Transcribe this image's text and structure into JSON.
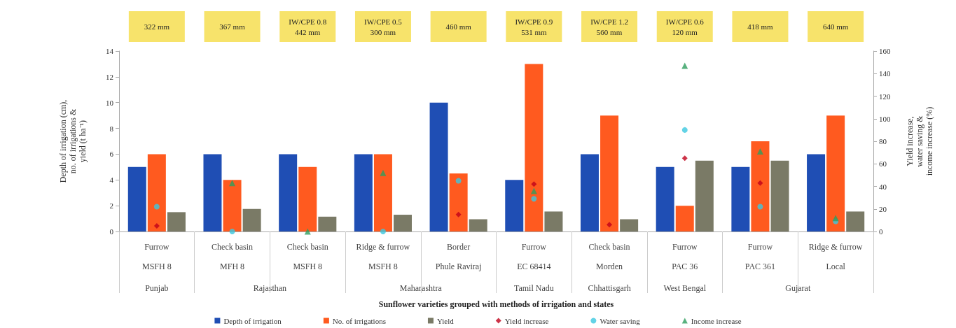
{
  "chart_data": {
    "type": "bar",
    "xlabel": "Sunflower varieties grouped with methods of irrigation and states",
    "ylabel": "Depth of irrigation (cm),\nno. of irrigations &\nyield (t ha⁻¹)",
    "y2label": "Yield increase,\nwater saving &\nincome increase (%)",
    "categories": [
      "Furrow\nMSFH 8",
      "Check basin\nMFH 8",
      "Check basin\nMSFH 8",
      "Ridge & furrow\nMSFH 8",
      "Border\nPhule Raviraj",
      "Furrow\nEC 68414",
      "Check basin\nMorden",
      "Furrow\nPAC 36",
      "Furrow\nPAC 361",
      "Ridge & furrow\nLocal"
    ],
    "series": [
      {
        "name": "Depth of irrigation",
        "color": "#1f4eb4",
        "values": [
          5,
          6,
          6,
          6,
          10,
          4,
          6,
          5,
          5,
          6
        ]
      },
      {
        "name": "No. of irrigations",
        "color": "#ff5a1f",
        "values": [
          6,
          4,
          5,
          6,
          4.5,
          13,
          9,
          2,
          7,
          9
        ]
      },
      {
        "name": "Yield",
        "color": "#7a7a66",
        "values": [
          1.5,
          1.75,
          1.15,
          1.3,
          0.95,
          1.55,
          0.95,
          5.5,
          5.5,
          1.55
        ]
      },
      {
        "name": "Yield increase",
        "type": "scatter",
        "marker": "diamond",
        "axis": "y2",
        "color": "#c0001a",
        "values": [
          5,
          null,
          null,
          null,
          15,
          42,
          6,
          65,
          43,
          null
        ]
      },
      {
        "name": "Water saving",
        "type": "scatter",
        "marker": "circle",
        "axis": "y2",
        "color": "#3cc8e0",
        "values": [
          22,
          0,
          null,
          0,
          45,
          29,
          null,
          90,
          22,
          9
        ]
      },
      {
        "name": "Income increase",
        "type": "scatter",
        "marker": "triangle",
        "axis": "y2",
        "color": "#2e9e5e",
        "values": [
          null,
          43,
          0,
          52,
          null,
          36,
          null,
          147,
          71,
          12
        ]
      }
    ],
    "ylim": [
      0,
      14
    ],
    "yticks": [
      0,
      2,
      4,
      6,
      8,
      10,
      12,
      14
    ],
    "y2lim": [
      0,
      160
    ],
    "y2ticks": [
      0,
      20,
      40,
      60,
      80,
      100,
      120,
      140,
      160
    ],
    "grid": false,
    "legend": "bottom",
    "annotations": [
      "322 mm",
      "367 mm",
      "IW/CPE 0.8\n442 mm",
      "IW/CPE 0.5\n300 mm",
      "460 mm",
      "IW/CPE 0.9\n531 mm",
      "IW/CPE 1.2\n560 mm",
      "IW/CPE 0.6\n120 mm",
      "418 mm",
      "640 mm",
      "Punjab",
      "Rajasthan",
      "Maharashtra",
      "Tamil Nadu",
      "Chhattisgarh",
      "West Bengal",
      "Gujarat"
    ]
  }
}
